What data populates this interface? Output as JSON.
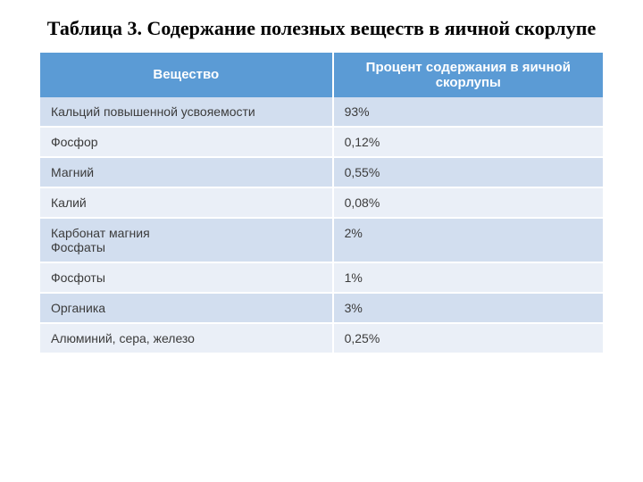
{
  "title": "Таблица 3. Содержание полезных веществ в яичной скорлупе",
  "table": {
    "type": "table",
    "header_bg": "#5b9bd5",
    "header_text_color": "#ffffff",
    "row_odd_bg": "#d2deef",
    "row_even_bg": "#eaeff7",
    "cell_text_color": "#3b3b3b",
    "title_fontsize": 22,
    "header_fontsize": 15,
    "cell_fontsize": 14,
    "columns": [
      {
        "label": "Вещество",
        "width_pct": 52,
        "align": "center"
      },
      {
        "label": "Процент содержания в яичной скорлупы",
        "width_pct": 48,
        "align": "center"
      }
    ],
    "rows": [
      {
        "substance": "Кальций повышенной усвояемости",
        "percent": "93%",
        "height": "tall"
      },
      {
        "substance": "Фосфор",
        "percent": "0,12%",
        "height": "medium"
      },
      {
        "substance": "Магний",
        "percent": "0,55%",
        "height": "medium"
      },
      {
        "substance": "Калий",
        "percent": "0,08%",
        "height": "medium"
      },
      {
        "substance": "Карбонат магния\nФосфаты",
        "percent": "2%",
        "height": "tall"
      },
      {
        "substance": "Фосфоты",
        "percent": "1%",
        "height": "short"
      },
      {
        "substance": "Органика",
        "percent": "3%",
        "height": "short"
      },
      {
        "substance": "Алюминий, сера, железо",
        "percent": "0,25%",
        "height": "medium"
      }
    ]
  }
}
